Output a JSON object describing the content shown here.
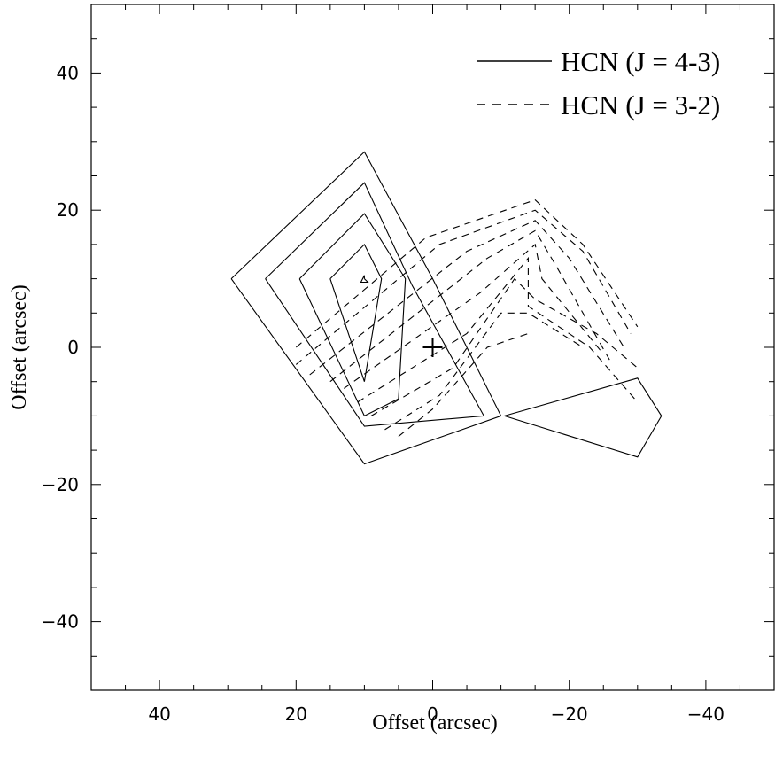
{
  "chart_data": {
    "type": "contour",
    "xlabel": "Offset (arcsec)",
    "ylabel": "Offset (arcsec)",
    "xlim": [
      50,
      -50
    ],
    "ylim": [
      -50,
      50
    ],
    "x_ticks": [
      40,
      20,
      0,
      -20,
      -40
    ],
    "y_ticks": [
      40,
      20,
      0,
      -20,
      -40
    ],
    "x_tick_labels": [
      "40",
      "20",
      "0",
      "−20",
      "−40"
    ],
    "y_tick_labels": [
      "40",
      "20",
      "0",
      "−20",
      "−40"
    ],
    "grid": false,
    "legend_position": "top-right",
    "marker": {
      "symbol": "+",
      "x": 0,
      "y": 0
    },
    "series": [
      {
        "name": "HCN (J = 4-3)",
        "style": "solid",
        "contours": [
          [
            [
              29.5,
              10
            ],
            [
              10,
              28.5
            ],
            [
              0,
              10
            ],
            [
              -10,
              -10
            ],
            [
              10,
              -17
            ],
            [
              29.5,
              10
            ]
          ],
          [
            [
              24.5,
              10
            ],
            [
              10,
              24
            ],
            [
              3,
              9
            ],
            [
              -7.5,
              -10
            ],
            [
              10,
              -11.5
            ],
            [
              24.5,
              10
            ]
          ],
          [
            [
              19.5,
              10
            ],
            [
              10,
              19.5
            ],
            [
              4,
              10
            ],
            [
              5,
              -7.5
            ],
            [
              10,
              -10
            ],
            [
              19.5,
              10
            ]
          ],
          [
            [
              15,
              10
            ],
            [
              10,
              15
            ],
            [
              7.5,
              10
            ],
            [
              10,
              -5
            ],
            [
              15,
              10
            ]
          ],
          [
            [
              10,
              10
            ],
            [
              10,
              10.5
            ],
            [
              10.5,
              9.5
            ],
            [
              9.5,
              9.5
            ],
            [
              10,
              10
            ]
          ],
          [
            [
              -10.5,
              -10
            ],
            [
              -30,
              -4.5
            ],
            [
              -33.5,
              -10
            ],
            [
              -30,
              -16
            ],
            [
              -10.5,
              -10
            ]
          ]
        ]
      },
      {
        "name": "HCN (J = 3-2)",
        "style": "dashed",
        "contours": [
          [
            [
              20,
              0
            ],
            [
              1,
              16
            ],
            [
              -15,
              21.5
            ],
            [
              -22,
              15
            ],
            [
              -30,
              3
            ]
          ],
          [
            [
              20,
              -2.5
            ],
            [
              -1,
              15
            ],
            [
              -15,
              20
            ],
            [
              -22,
              14
            ],
            [
              -29,
              2
            ]
          ],
          [
            [
              18,
              -4
            ],
            [
              -5,
              14
            ],
            [
              -15,
              18.5
            ],
            [
              -20,
              13
            ],
            [
              -28,
              0
            ]
          ],
          [
            [
              15,
              -5
            ],
            [
              -8,
              13
            ],
            [
              -15,
              17
            ],
            [
              -18,
              12
            ],
            [
              -26,
              -2
            ]
          ],
          [
            [
              13,
              -6
            ],
            [
              -7,
              8
            ],
            [
              -15,
              15
            ],
            [
              -16,
              10
            ],
            [
              -25,
              -1
            ]
          ],
          [
            [
              11,
              -8
            ],
            [
              -5,
              2
            ],
            [
              -14,
              13
            ],
            [
              -14,
              6
            ],
            [
              -23,
              0
            ],
            [
              -30,
              -8
            ]
          ],
          [
            [
              9,
              -10
            ],
            [
              -3,
              -3
            ],
            [
              -12,
              10
            ],
            [
              -15,
              7
            ],
            [
              -24,
              2
            ],
            [
              -30,
              -3
            ]
          ],
          [
            [
              7,
              -12
            ],
            [
              -1,
              -7
            ],
            [
              -10,
              5
            ],
            [
              -14,
              5
            ],
            [
              -22,
              0
            ]
          ],
          [
            [
              5,
              -13
            ],
            [
              0,
              -9
            ],
            [
              -8,
              0
            ],
            [
              -14,
              2
            ]
          ]
        ]
      }
    ]
  }
}
